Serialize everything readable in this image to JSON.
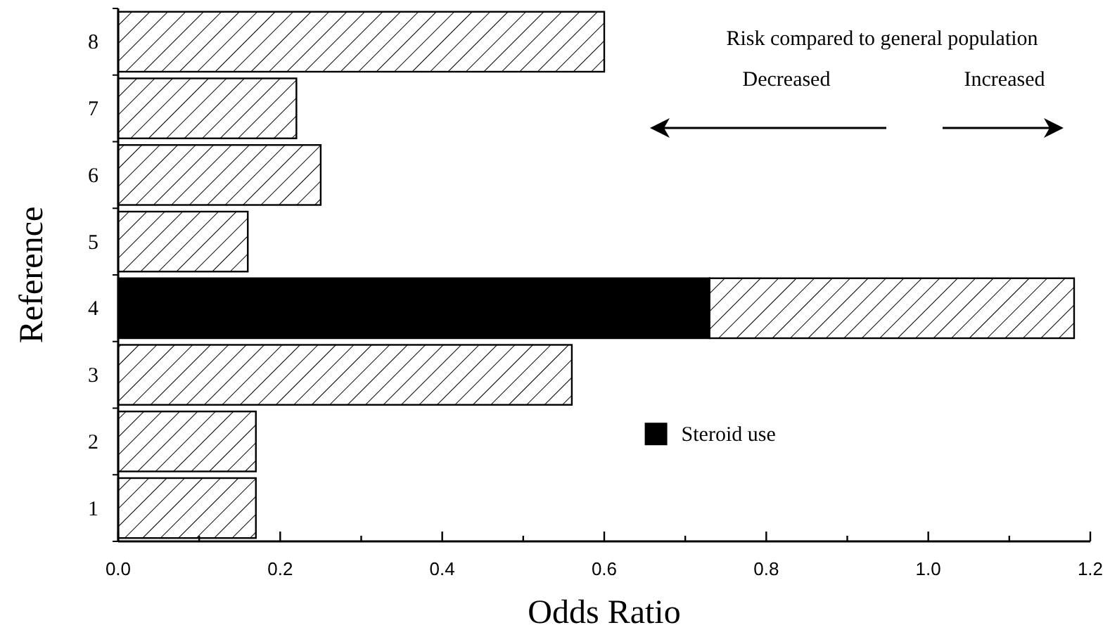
{
  "chart_data": {
    "type": "bar",
    "orientation": "horizontal",
    "stacked": true,
    "xlabel": "Odds Ratio",
    "ylabel": "Reference",
    "categories": [
      "8",
      "7",
      "6",
      "5",
      "4",
      "3",
      "2",
      "1"
    ],
    "series": [
      {
        "name": "Steroid use",
        "color": "#000000",
        "values": [
          null,
          null,
          null,
          null,
          0.73,
          null,
          null,
          null
        ]
      },
      {
        "color": "#ffffff",
        "values": [
          0.6,
          0.22,
          0.25,
          0.16,
          0.45,
          0.56,
          0.17,
          0.17
        ]
      }
    ],
    "xlim": [
      0,
      1.2
    ],
    "xticks": [
      {
        "value": 0,
        "label": "0.0"
      },
      {
        "value": 0.1,
        "label": null
      },
      {
        "value": 0.2,
        "label": "0.2"
      },
      {
        "value": 0.3,
        "label": null
      },
      {
        "value": 0.4,
        "label": "0.4"
      },
      {
        "value": 0.5,
        "label": null
      },
      {
        "value": 0.6,
        "label": "0.6"
      },
      {
        "value": 0.7,
        "label": null
      },
      {
        "value": 0.8,
        "label": "0.8"
      },
      {
        "value": 0.9,
        "label": null
      },
      {
        "value": 1,
        "label": "1.0"
      },
      {
        "value": 1.1,
        "label": null
      },
      {
        "value": 1.2,
        "label": "1.2"
      }
    ],
    "annotations": [
      "Risk compared to general population",
      "Decreased",
      "Increased"
    ],
    "legend": "bottom right",
    "grid": false
  }
}
